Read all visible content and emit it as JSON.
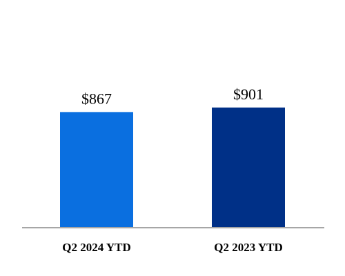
{
  "chart_data": {
    "type": "bar",
    "categories": [
      "Q2 2024 YTD",
      "Q2 2023 YTD"
    ],
    "values": [
      867,
      901
    ],
    "value_labels": [
      "$867",
      "$901"
    ],
    "bar_colors": [
      "#0A6FE0",
      "#003087"
    ],
    "axis_color": "#A6A6A6",
    "ylim": [
      0,
      1500
    ],
    "grid": false,
    "legend": "none"
  }
}
